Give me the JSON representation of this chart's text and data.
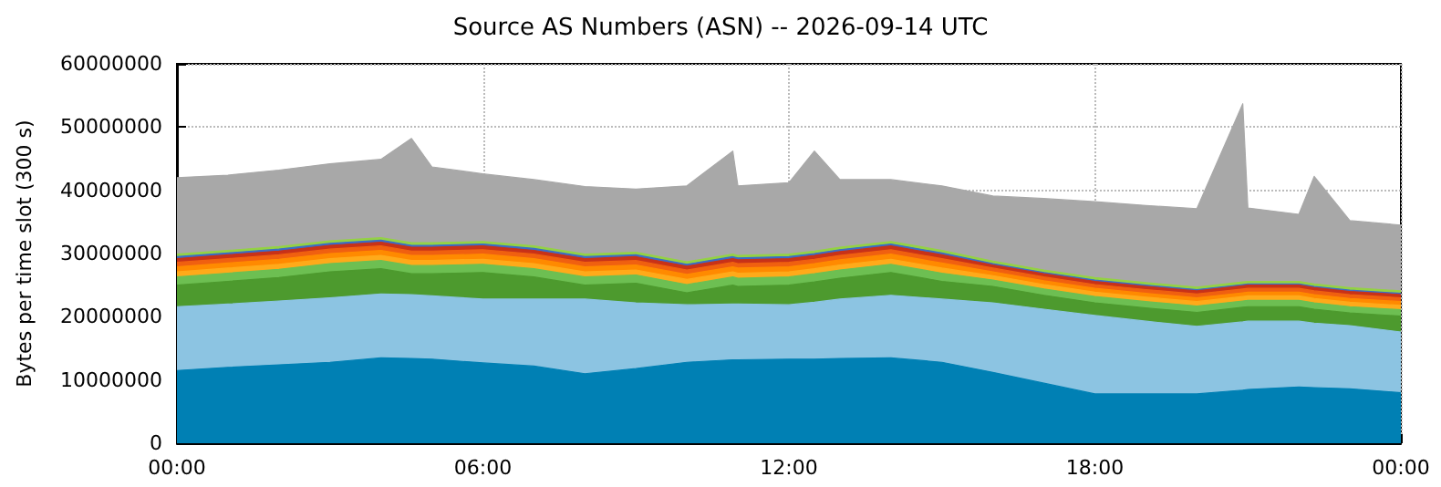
{
  "chart_data": {
    "type": "area",
    "stacked": true,
    "title": "Source AS Numbers (ASN) -- 2026-09-14 UTC",
    "ylabel": "Bytes per time slot (300 s)",
    "x": [
      0,
      1,
      2,
      3,
      4,
      4.6,
      5,
      6,
      7,
      8,
      9,
      10,
      10.9,
      11,
      12,
      12.5,
      13,
      14,
      15,
      16,
      17,
      18,
      19,
      20,
      20.9,
      21,
      22,
      22.3,
      23,
      24
    ],
    "xlim": [
      0,
      24
    ],
    "xticks": [
      {
        "value": 0,
        "label": "00:00"
      },
      {
        "value": 6,
        "label": "06:00"
      },
      {
        "value": 12,
        "label": "12:00"
      },
      {
        "value": 18,
        "label": "18:00"
      },
      {
        "value": 24,
        "label": "00:00"
      }
    ],
    "ylim": [
      0,
      60000000
    ],
    "yticks": [
      0,
      10000000,
      20000000,
      30000000,
      40000000,
      50000000,
      60000000
    ],
    "grid": true,
    "series": [
      {
        "color": "#0080b4",
        "values": [
          11500000,
          12000000,
          12400000,
          12800000,
          13500000,
          13400000,
          13300000,
          12700000,
          12200000,
          11000000,
          11800000,
          12800000,
          13200000,
          13200000,
          13300000,
          13300000,
          13400000,
          13500000,
          12800000,
          11200000,
          9500000,
          7800000,
          7800000,
          7800000,
          8400000,
          8500000,
          8900000,
          8800000,
          8600000,
          8000000
        ]
      },
      {
        "color": "#8cc4e2",
        "values": [
          10100000,
          10000000,
          10100000,
          10200000,
          10100000,
          10100000,
          10000000,
          10100000,
          10600000,
          11800000,
          10400000,
          9100000,
          8800000,
          8800000,
          8600000,
          9000000,
          9400000,
          9900000,
          10000000,
          11000000,
          11700000,
          12400000,
          11500000,
          10700000,
          10800000,
          10800000,
          10400000,
          10200000,
          10000000,
          9600000
        ]
      },
      {
        "color": "#4d9a2e",
        "values": [
          3400000,
          3600000,
          3700000,
          4100000,
          4000000,
          3300000,
          3500000,
          4200000,
          3500000,
          2200000,
          3100000,
          1900000,
          3000000,
          2800000,
          3100000,
          3200000,
          3300000,
          3600000,
          2800000,
          2600000,
          2200000,
          2000000,
          2100000,
          2200000,
          2300000,
          2300000,
          2300000,
          2200000,
          2000000,
          2500000
        ]
      },
      {
        "color": "#6dbf52",
        "values": [
          1300000,
          1300000,
          1300000,
          1300000,
          1300000,
          1300000,
          1300000,
          1300000,
          1300000,
          1300000,
          1300000,
          1300000,
          1300000,
          1300000,
          1300000,
          1300000,
          1300000,
          1300000,
          1300000,
          1000000,
          1000000,
          1000000,
          1000000,
          1000000,
          1000000,
          1000000,
          1000000,
          1000000,
          1000000,
          1000000
        ]
      },
      {
        "color": "#ffaa1a",
        "values": [
          800000,
          800000,
          800000,
          800000,
          800000,
          800000,
          800000,
          800000,
          800000,
          800000,
          800000,
          800000,
          800000,
          800000,
          800000,
          800000,
          800000,
          800000,
          800000,
          700000,
          700000,
          700000,
          700000,
          700000,
          700000,
          700000,
          700000,
          700000,
          700000,
          700000
        ]
      },
      {
        "color": "#ff8a00",
        "values": [
          800000,
          800000,
          800000,
          800000,
          800000,
          800000,
          800000,
          800000,
          800000,
          800000,
          800000,
          800000,
          800000,
          800000,
          800000,
          800000,
          800000,
          800000,
          800000,
          600000,
          600000,
          600000,
          600000,
          600000,
          600000,
          600000,
          600000,
          600000,
          600000,
          600000
        ]
      },
      {
        "color": "#f06010",
        "values": [
          700000,
          700000,
          700000,
          700000,
          700000,
          700000,
          700000,
          700000,
          700000,
          700000,
          700000,
          700000,
          700000,
          700000,
          700000,
          700000,
          700000,
          700000,
          700000,
          600000,
          600000,
          600000,
          600000,
          600000,
          600000,
          600000,
          600000,
          600000,
          600000,
          600000
        ]
      },
      {
        "color": "#c83218",
        "values": [
          600000,
          600000,
          600000,
          600000,
          600000,
          600000,
          600000,
          600000,
          600000,
          600000,
          600000,
          600000,
          600000,
          600000,
          600000,
          600000,
          600000,
          600000,
          600000,
          500000,
          500000,
          500000,
          500000,
          500000,
          500000,
          500000,
          500000,
          500000,
          500000,
          500000
        ]
      },
      {
        "color": "#3a6cc8",
        "values": [
          300000,
          300000,
          300000,
          300000,
          300000,
          300000,
          300000,
          300000,
          300000,
          300000,
          300000,
          300000,
          300000,
          300000,
          300000,
          300000,
          300000,
          300000,
          300000,
          200000,
          200000,
          200000,
          200000,
          200000,
          200000,
          200000,
          200000,
          200000,
          200000,
          200000
        ]
      },
      {
        "color": "#94d244",
        "values": [
          400000,
          400000,
          400000,
          400000,
          400000,
          400000,
          400000,
          400000,
          400000,
          400000,
          400000,
          400000,
          400000,
          400000,
          400000,
          400000,
          400000,
          400000,
          400000,
          400000,
          400000,
          400000,
          400000,
          400000,
          400000,
          400000,
          400000,
          400000,
          400000,
          400000
        ]
      },
      {
        "color": "#a8a8a8",
        "values": [
          12100000,
          11900000,
          12100000,
          12200000,
          12400000,
          16500000,
          12000000,
          10700000,
          10500000,
          10700000,
          10000000,
          12000000,
          16300000,
          11000000,
          11300000,
          15800000,
          10700000,
          9800000,
          10200000,
          10300000,
          11300000,
          12000000,
          12200000,
          12400000,
          28200000,
          11600000,
          10600000,
          17000000,
          10600000,
          10400000
        ]
      }
    ]
  }
}
